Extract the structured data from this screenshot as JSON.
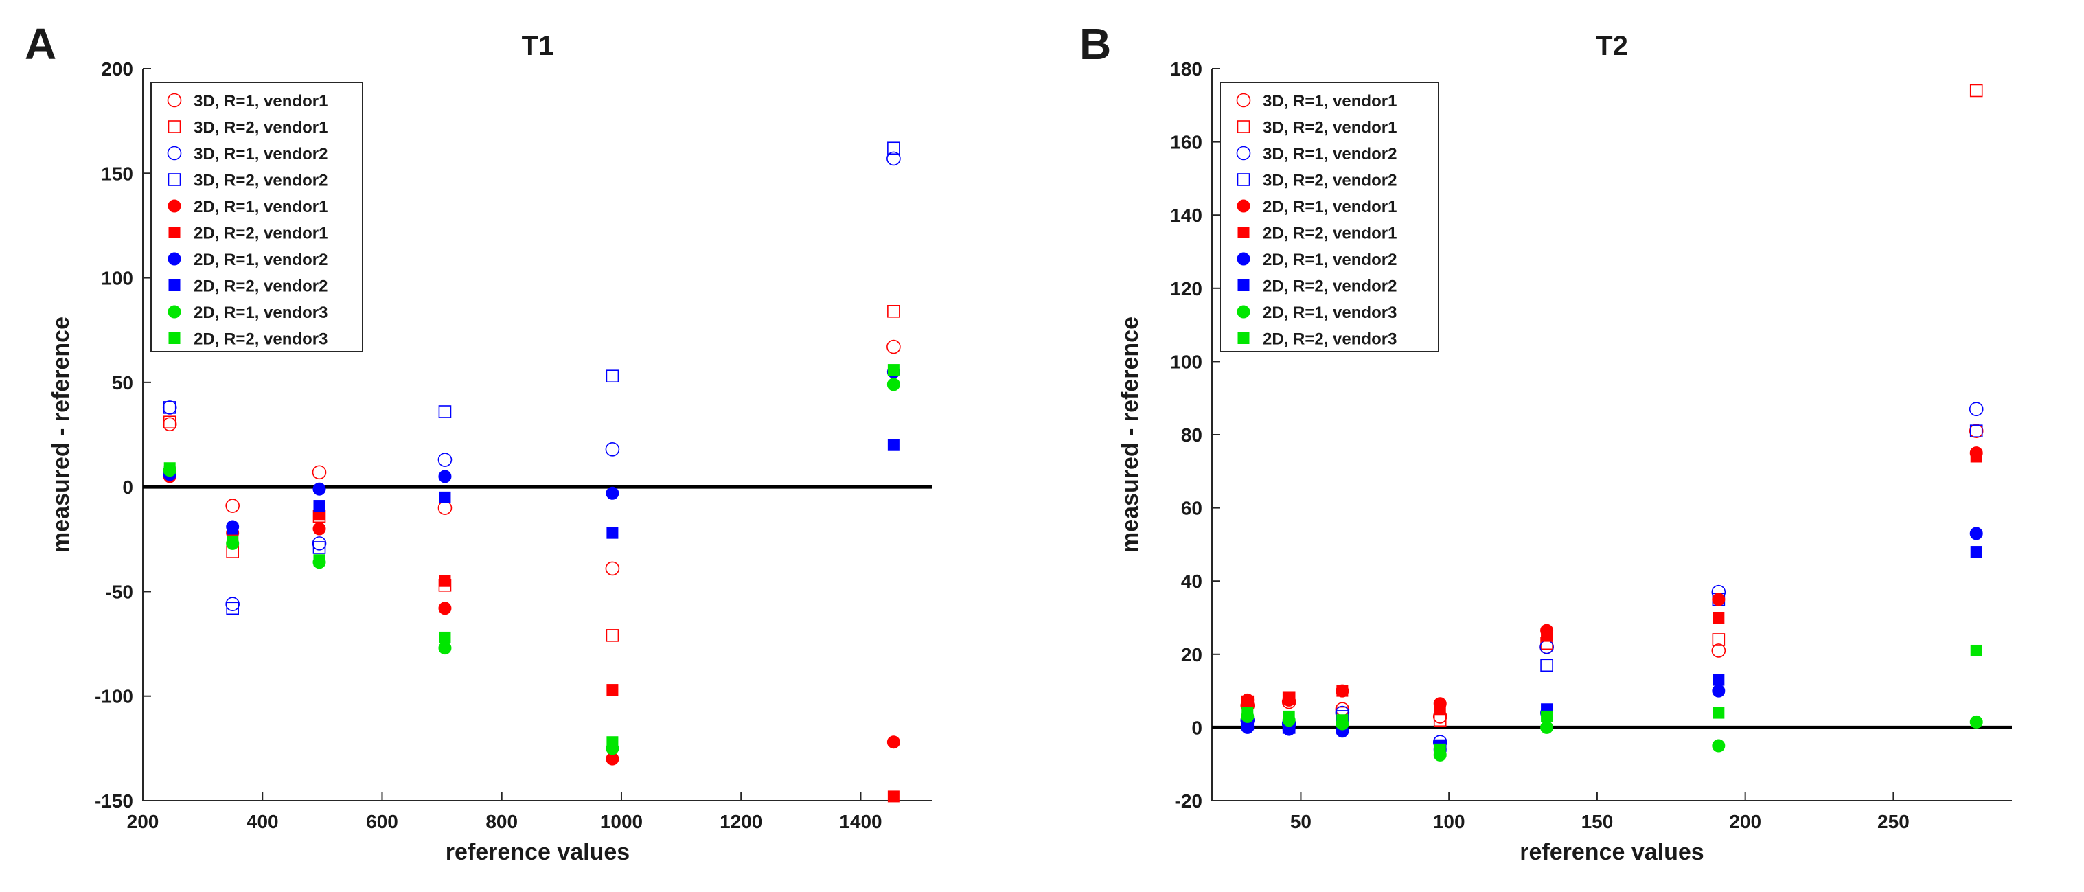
{
  "chart_data": [
    {
      "type": "scatter",
      "panel_label": "A",
      "title": "T1",
      "xlabel": "reference values",
      "ylabel": "measured - reference",
      "xlim": [
        200,
        1520
      ],
      "ylim": [
        -150,
        200
      ],
      "xticks": [
        200,
        400,
        600,
        800,
        1000,
        1200,
        1400
      ],
      "yticks": [
        -150,
        -100,
        -50,
        0,
        50,
        100,
        150,
        200
      ],
      "zero_line": true,
      "legend_position": "top-left",
      "series": [
        {
          "name": "3D, R=1, vendor1",
          "color": "#ff0000",
          "marker": "circle",
          "filled": false,
          "x": [
            245,
            350,
            495,
            705,
            985,
            1455
          ],
          "y": [
            30,
            -9,
            7,
            -10,
            -39,
            67
          ]
        },
        {
          "name": "3D, R=2, vendor1",
          "color": "#ff0000",
          "marker": "square",
          "filled": false,
          "x": [
            245,
            350,
            495,
            705,
            985,
            1455
          ],
          "y": [
            31,
            -31,
            -14,
            -47,
            -71,
            84
          ]
        },
        {
          "name": "3D, R=1, vendor2",
          "color": "#0000ff",
          "marker": "circle",
          "filled": false,
          "x": [
            245,
            350,
            495,
            705,
            985,
            1455
          ],
          "y": [
            38,
            -56,
            -27,
            13,
            18,
            157
          ]
        },
        {
          "name": "3D, R=2, vendor2",
          "color": "#0000ff",
          "marker": "square",
          "filled": false,
          "x": [
            245,
            350,
            495,
            705,
            985,
            1455
          ],
          "y": [
            38,
            -58,
            -29,
            36,
            53,
            162
          ]
        },
        {
          "name": "2D, R=1, vendor1",
          "color": "#ff0000",
          "marker": "circle",
          "filled": true,
          "x": [
            245,
            350,
            495,
            705,
            985,
            1455
          ],
          "y": [
            5,
            -22,
            -20,
            -58,
            -130,
            -122
          ]
        },
        {
          "name": "2D, R=2, vendor1",
          "color": "#ff0000",
          "marker": "square",
          "filled": true,
          "x": [
            245,
            350,
            495,
            705,
            985,
            1455
          ],
          "y": [
            7,
            -24,
            -13,
            -45,
            -97,
            -148
          ]
        },
        {
          "name": "2D, R=1, vendor2",
          "color": "#0000ff",
          "marker": "circle",
          "filled": true,
          "x": [
            245,
            350,
            495,
            705,
            985,
            1455
          ],
          "y": [
            6,
            -19,
            -1,
            5,
            -3,
            55
          ]
        },
        {
          "name": "2D, R=2, vendor2",
          "color": "#0000ff",
          "marker": "square",
          "filled": true,
          "x": [
            245,
            350,
            495,
            705,
            985,
            1455
          ],
          "y": [
            7,
            -20,
            -9,
            -5,
            -22,
            20
          ]
        },
        {
          "name": "2D, R=1, vendor3",
          "color": "#00e600",
          "marker": "circle",
          "filled": true,
          "x": [
            245,
            350,
            495,
            705,
            985,
            1455
          ],
          "y": [
            8,
            -27,
            -36,
            -77,
            -125,
            49
          ]
        },
        {
          "name": "2D, R=2, vendor3",
          "color": "#00e600",
          "marker": "square",
          "filled": true,
          "x": [
            245,
            350,
            495,
            705,
            985,
            1455
          ],
          "y": [
            9,
            -26,
            -35,
            -72,
            -122,
            56
          ]
        }
      ]
    },
    {
      "type": "scatter",
      "panel_label": "B",
      "title": "T2",
      "xlabel": "reference values",
      "ylabel": "measured - reference",
      "xlim": [
        20,
        290
      ],
      "ylim": [
        -20,
        180
      ],
      "xticks": [
        50,
        100,
        150,
        200,
        250
      ],
      "yticks": [
        -20,
        0,
        20,
        40,
        60,
        80,
        100,
        120,
        140,
        160,
        180
      ],
      "zero_line": true,
      "legend_position": "top-left",
      "series": [
        {
          "name": "3D, R=1, vendor1",
          "color": "#ff0000",
          "marker": "circle",
          "filled": false,
          "x": [
            32,
            46,
            64,
            97,
            133,
            191,
            278
          ],
          "y": [
            6,
            7,
            5,
            3,
            22,
            21,
            81
          ]
        },
        {
          "name": "3D, R=2, vendor1",
          "color": "#ff0000",
          "marker": "square",
          "filled": false,
          "x": [
            32,
            46,
            64,
            97,
            133,
            191,
            278
          ],
          "y": [
            7,
            8,
            4,
            2,
            23,
            24,
            174
          ]
        },
        {
          "name": "3D, R=1, vendor2",
          "color": "#0000ff",
          "marker": "circle",
          "filled": false,
          "x": [
            32,
            46,
            64,
            97,
            133,
            191,
            278
          ],
          "y": [
            2,
            1,
            4,
            -4,
            22,
            37,
            87
          ]
        },
        {
          "name": "3D, R=2, vendor2",
          "color": "#0000ff",
          "marker": "square",
          "filled": false,
          "x": [
            32,
            46,
            64,
            97,
            133,
            191,
            278
          ],
          "y": [
            1,
            0,
            3,
            -5,
            17,
            35,
            81
          ]
        },
        {
          "name": "2D, R=1, vendor1",
          "color": "#ff0000",
          "marker": "circle",
          "filled": true,
          "x": [
            32,
            46,
            64,
            97,
            133,
            191,
            278
          ],
          "y": [
            7.5,
            7.5,
            10,
            6.5,
            26.5,
            35,
            75
          ]
        },
        {
          "name": "2D, R=2, vendor1",
          "color": "#ff0000",
          "marker": "square",
          "filled": true,
          "x": [
            32,
            46,
            64,
            97,
            133,
            191,
            278
          ],
          "y": [
            7,
            8,
            10,
            5,
            25,
            30,
            74
          ]
        },
        {
          "name": "2D, R=1, vendor2",
          "color": "#0000ff",
          "marker": "circle",
          "filled": true,
          "x": [
            32,
            46,
            64,
            97,
            133,
            191,
            278
          ],
          "y": [
            0,
            -0.5,
            -1,
            -6,
            4,
            10,
            53
          ]
        },
        {
          "name": "2D, R=2, vendor2",
          "color": "#0000ff",
          "marker": "square",
          "filled": true,
          "x": [
            32,
            46,
            64,
            97,
            133,
            191,
            278
          ],
          "y": [
            1,
            1,
            0,
            -5,
            5,
            13,
            48
          ]
        },
        {
          "name": "2D, R=1, vendor3",
          "color": "#00e600",
          "marker": "circle",
          "filled": true,
          "x": [
            32,
            46,
            64,
            97,
            133,
            191,
            278
          ],
          "y": [
            3,
            2,
            1,
            -7.5,
            0,
            -5,
            1.5
          ]
        },
        {
          "name": "2D, R=2, vendor3",
          "color": "#00e600",
          "marker": "square",
          "filled": true,
          "x": [
            32,
            46,
            64,
            97,
            133,
            191,
            278
          ],
          "y": [
            4,
            3,
            2,
            -6,
            3,
            4,
            21
          ]
        }
      ]
    }
  ]
}
